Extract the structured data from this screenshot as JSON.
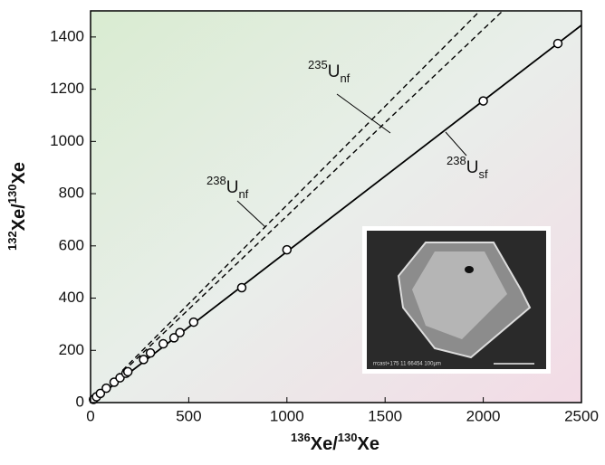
{
  "chart_data": {
    "type": "scatter",
    "x_label": [
      "136",
      "Xe/",
      "130",
      "Xe"
    ],
    "y_label": [
      "132",
      "Xe/",
      "130",
      "Xe"
    ],
    "xlim": [
      0,
      2500
    ],
    "ylim": [
      0,
      1500
    ],
    "xticks": [
      0,
      500,
      1000,
      1500,
      2000,
      2500
    ],
    "yticks": [
      0,
      200,
      400,
      600,
      800,
      1000,
      1200,
      1400
    ],
    "series": [
      {
        "color": "#000000",
        "x": [
          15,
          30,
          50,
          80,
          120,
          150,
          180,
          190,
          270,
          305,
          370,
          425,
          455,
          525,
          770,
          1000,
          2000,
          2380
        ],
        "values": [
          12,
          22,
          35,
          55,
          78,
          95,
          112,
          118,
          165,
          190,
          225,
          248,
          268,
          308,
          440,
          585,
          1155,
          1375
        ]
      }
    ],
    "lines": [
      {
        "label": [
          "238",
          "U",
          "sf"
        ],
        "style": "solid",
        "x": [
          0,
          2500
        ],
        "y": [
          0,
          1445
        ]
      },
      {
        "label": [
          "238",
          "U",
          "nf"
        ],
        "style": "dashed",
        "x": [
          0,
          1983
        ],
        "y": [
          0,
          1500
        ]
      },
      {
        "label": [
          "235",
          "U",
          "nf"
        ],
        "style": "dashed",
        "x": [
          0,
          2099
        ],
        "y": [
          0,
          1500
        ]
      }
    ],
    "inset_caption": "rrcast+175 11 66454   100µm"
  }
}
